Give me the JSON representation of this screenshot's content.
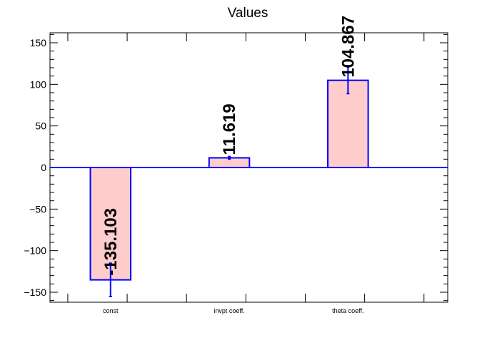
{
  "chart_data": {
    "type": "bar",
    "title": "Values",
    "xlabel": "",
    "ylabel": "",
    "categories": [
      "const",
      "invpt coeff.",
      "theta coeff."
    ],
    "values": [
      -135.103,
      11.619,
      104.867
    ],
    "errors": [
      20.0,
      1.5,
      16.0
    ],
    "value_labels": [
      "-135.103",
      "11.619",
      "104.867"
    ],
    "ylim": [
      -162,
      162
    ],
    "y_ticks": [
      -150,
      -100,
      -50,
      0,
      50,
      100,
      150
    ],
    "y_tick_labels": [
      "−150",
      "−100",
      "−50",
      "0",
      "50",
      "100",
      "150"
    ],
    "grid": false,
    "legend": "none",
    "colors": {
      "bar_fill": "#ffcccc",
      "bar_edge": "#0000ff",
      "error_bar": "#0000ff",
      "zero_line": "#0000ff",
      "axis": "#000000",
      "text": "#000000"
    }
  }
}
